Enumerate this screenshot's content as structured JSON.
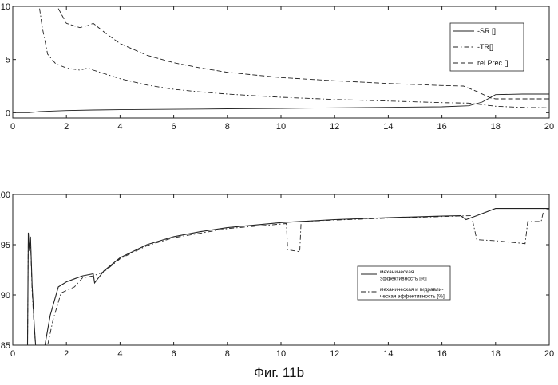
{
  "caption": "Фиг. 11b",
  "chart_data": [
    {
      "type": "line",
      "grid": false,
      "legend_position": "top-right",
      "xlim": [
        0,
        20
      ],
      "ylim": [
        -0.5,
        10
      ],
      "xticks": [
        "0",
        "2",
        "4",
        "6",
        "8",
        "10",
        "12",
        "14",
        "16",
        "18",
        "20"
      ],
      "yticks": [
        "0",
        "5",
        "10"
      ],
      "ytick_values": [
        0,
        5,
        10
      ],
      "series": [
        {
          "name": "-SR []",
          "style": "solid",
          "points": [
            [
              0,
              0.0
            ],
            [
              0.6,
              0.0
            ],
            [
              1.0,
              0.1
            ],
            [
              1.5,
              0.15
            ],
            [
              2,
              0.2
            ],
            [
              3,
              0.25
            ],
            [
              4,
              0.28
            ],
            [
              6,
              0.32
            ],
            [
              8,
              0.36
            ],
            [
              10,
              0.4
            ],
            [
              12,
              0.45
            ],
            [
              14,
              0.5
            ],
            [
              16,
              0.55
            ],
            [
              17,
              0.65
            ],
            [
              17.5,
              1.0
            ],
            [
              18,
              1.7
            ],
            [
              19,
              1.75
            ],
            [
              20,
              1.75
            ]
          ]
        },
        {
          "name": "-TR[]",
          "style": "dashdot",
          "points": [
            [
              1.0,
              9.8
            ],
            [
              1.1,
              8.0
            ],
            [
              1.3,
              5.5
            ],
            [
              1.6,
              4.6
            ],
            [
              2.0,
              4.2
            ],
            [
              2.5,
              4.0
            ],
            [
              2.8,
              4.2
            ],
            [
              3.0,
              4.0
            ],
            [
              3.5,
              3.6
            ],
            [
              4,
              3.2
            ],
            [
              5,
              2.6
            ],
            [
              6,
              2.2
            ],
            [
              7,
              1.95
            ],
            [
              8,
              1.75
            ],
            [
              10,
              1.45
            ],
            [
              12,
              1.25
            ],
            [
              14,
              1.1
            ],
            [
              16,
              0.95
            ],
            [
              17,
              0.9
            ],
            [
              18,
              0.6
            ],
            [
              19,
              0.5
            ],
            [
              20,
              0.45
            ]
          ]
        },
        {
          "name": "rel.Prec []",
          "style": "dashed",
          "points": [
            [
              1.7,
              9.8
            ],
            [
              2.0,
              8.4
            ],
            [
              2.5,
              8.0
            ],
            [
              2.8,
              8.2
            ],
            [
              3.0,
              8.4
            ],
            [
              3.5,
              7.4
            ],
            [
              4,
              6.5
            ],
            [
              5,
              5.4
            ],
            [
              6,
              4.7
            ],
            [
              7,
              4.2
            ],
            [
              8,
              3.8
            ],
            [
              10,
              3.3
            ],
            [
              12,
              3.0
            ],
            [
              14,
              2.75
            ],
            [
              16,
              2.55
            ],
            [
              16.8,
              2.5
            ],
            [
              17.3,
              2.0
            ],
            [
              17.8,
              1.4
            ],
            [
              18,
              1.3
            ],
            [
              19,
              1.3
            ],
            [
              20,
              1.3
            ]
          ]
        }
      ]
    },
    {
      "type": "line",
      "grid": false,
      "legend_position": "center-right",
      "xlim": [
        0,
        20
      ],
      "ylim": [
        85,
        100
      ],
      "xticks": [
        "0",
        "2",
        "4",
        "6",
        "8",
        "10",
        "12",
        "14",
        "16",
        "18",
        "20"
      ],
      "yticks": [
        "85",
        "90",
        "95",
        "100"
      ],
      "ytick_values": [
        85,
        90,
        95,
        100
      ],
      "series": [
        {
          "name": "механическая\nэффективность [%]",
          "style": "solid",
          "points": [
            [
              0.55,
              85
            ],
            [
              0.58,
              96.2
            ],
            [
              0.62,
              94.5
            ],
            [
              0.66,
              95.8
            ],
            [
              0.72,
              91
            ],
            [
              0.8,
              87
            ],
            [
              0.85,
              85
            ],
            [
              1.2,
              85
            ],
            [
              1.4,
              88
            ],
            [
              1.7,
              90.8
            ],
            [
              2.0,
              91.3
            ],
            [
              2.3,
              91.6
            ],
            [
              2.6,
              91.9
            ],
            [
              3.0,
              92.1
            ],
            [
              3.05,
              91.2
            ],
            [
              3.4,
              92.4
            ],
            [
              4,
              93.7
            ],
            [
              5,
              95.0
            ],
            [
              6,
              95.8
            ],
            [
              7,
              96.3
            ],
            [
              8,
              96.7
            ],
            [
              10,
              97.2
            ],
            [
              12,
              97.5
            ],
            [
              14,
              97.7
            ],
            [
              16,
              97.85
            ],
            [
              16.7,
              97.9
            ],
            [
              16.9,
              97.5
            ],
            [
              17.3,
              97.9
            ],
            [
              18,
              98.6
            ],
            [
              19,
              98.6
            ],
            [
              20,
              98.6
            ]
          ]
        },
        {
          "name": "механическая и гидравли-\nческая эффективность [%]",
          "style": "dashdot",
          "points": [
            [
              0.55,
              85
            ],
            [
              0.58,
              96.0
            ],
            [
              0.62,
              94.3
            ],
            [
              0.66,
              95.5
            ],
            [
              0.72,
              90.5
            ],
            [
              0.8,
              86.5
            ],
            [
              0.85,
              85
            ],
            [
              1.3,
              85
            ],
            [
              1.5,
              87.5
            ],
            [
              1.8,
              90.2
            ],
            [
              2.3,
              90.8
            ],
            [
              2.6,
              91.7
            ],
            [
              3.0,
              91.9
            ],
            [
              3.4,
              92.3
            ],
            [
              4,
              93.6
            ],
            [
              5,
              94.9
            ],
            [
              6,
              95.7
            ],
            [
              8,
              96.6
            ],
            [
              10.2,
              97.1
            ],
            [
              10.25,
              94.5
            ],
            [
              10.7,
              94.3
            ],
            [
              10.75,
              97.3
            ],
            [
              12,
              97.45
            ],
            [
              14,
              97.65
            ],
            [
              16,
              97.8
            ],
            [
              17.1,
              97.9
            ],
            [
              17.3,
              95.5
            ],
            [
              18,
              95.4
            ],
            [
              19.1,
              95.1
            ],
            [
              19.2,
              97.3
            ],
            [
              19.7,
              97.3
            ],
            [
              19.8,
              98.5
            ],
            [
              20,
              98.5
            ]
          ]
        }
      ]
    }
  ]
}
